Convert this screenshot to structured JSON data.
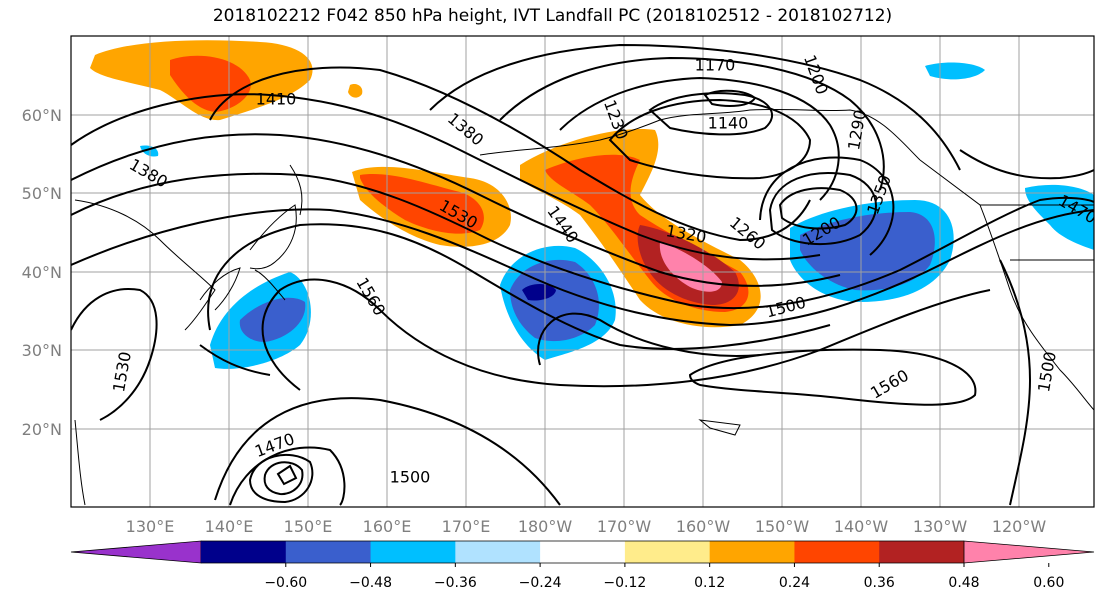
{
  "title": "2018102212 F042 850 hPa height, IVT Landfall PC (2018102512 - 2018102712)",
  "lat_labels": [
    "60°N",
    "50°N",
    "40°N",
    "30°N",
    "20°N"
  ],
  "lon_labels": [
    "130°E",
    "140°E",
    "150°E",
    "160°E",
    "170°E",
    "180°W",
    "170°W",
    "160°W",
    "150°W",
    "140°W",
    "130°W",
    "120°W"
  ],
  "contour_labels": [
    "1410",
    "1380",
    "1380",
    "1530",
    "1560",
    "1530",
    "1470",
    "1500",
    "1440",
    "1320",
    "1260",
    "1200",
    "1230",
    "1170",
    "1140",
    "1200",
    "1290",
    "1350",
    "1500",
    "1560",
    "1500",
    "1470"
  ],
  "colorbar": {
    "ticks": [
      "−0.60",
      "−0.48",
      "−0.36",
      "−0.24",
      "−0.12",
      "0.12",
      "0.24",
      "0.36",
      "0.48",
      "0.60"
    ],
    "colors": [
      "#9932cc",
      "#00008b",
      "#3a5fcd",
      "#00bfff",
      "#b0e2ff",
      "#ffffff",
      "#ffec8b",
      "#ffa500",
      "#ff4500",
      "#b22222",
      "#ff82ab"
    ]
  }
}
